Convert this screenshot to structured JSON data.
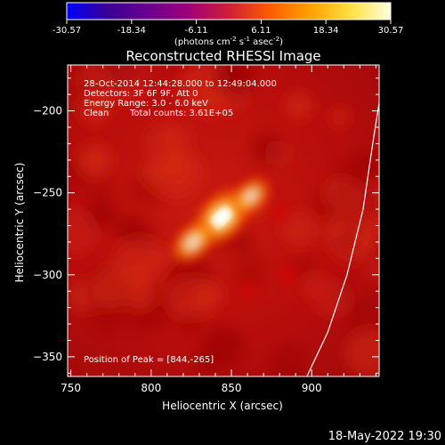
{
  "colorbar": {
    "tick_labels": [
      "-30.57",
      "-18.34",
      "-6.11",
      "6.11",
      "18.34",
      "30.57"
    ],
    "min": -30.57,
    "max": 30.57,
    "units_main": "(photons cm",
    "units_exp1": "-2",
    "units_mid": " s",
    "units_exp2": "-1",
    "units_end": " asec",
    "units_exp3": "-2",
    "units_close": ")",
    "palette": [
      "#0000ff",
      "#3a0096",
      "#6a0090",
      "#a0007a",
      "#d01e38",
      "#ff5a00",
      "#ffa000",
      "#ffe040",
      "#ffffe0"
    ]
  },
  "chart_data": {
    "type": "heatmap",
    "title": "Reconstructed RHESSI Image",
    "xlabel": "Heliocentric X (arcsec)",
    "ylabel": "Heliocentric Y (arcsec)",
    "xlim": [
      748,
      942
    ],
    "ylim": [
      -362,
      -172
    ],
    "x_ticks": [
      750,
      800,
      850,
      900
    ],
    "y_ticks": [
      -200,
      -250,
      -300,
      -350
    ],
    "sources": [
      {
        "x": 844,
        "y": -265,
        "peak": 30.57
      },
      {
        "x": 826,
        "y": -280,
        "peak": 16
      },
      {
        "x": 862,
        "y": -252,
        "peak": 12
      },
      {
        "x": 885,
        "y": -300,
        "peak": 4
      },
      {
        "x": 880,
        "y": -262,
        "peak": 3
      },
      {
        "x": 860,
        "y": -310,
        "peak": 3
      }
    ],
    "limb_arc": [
      [
        897,
        -362
      ],
      [
        910,
        -335
      ],
      [
        922,
        -300
      ],
      [
        932,
        -260
      ],
      [
        938,
        -220
      ],
      [
        942,
        -195
      ]
    ],
    "annotations": {
      "time_range": "28-Oct-2014 12:44:28.000 to 12:49:04.000",
      "detectors": "Detectors: 3F 6F 9F, Att 0",
      "energy": "Energy Range: 3.0 - 6.0 keV",
      "method": "Clean",
      "counts": "Total counts: 3.61E+05",
      "peak_position": "Position of Peak = [844,-265]"
    }
  },
  "footer": {
    "timestamp": "18-May-2022 19:30"
  }
}
